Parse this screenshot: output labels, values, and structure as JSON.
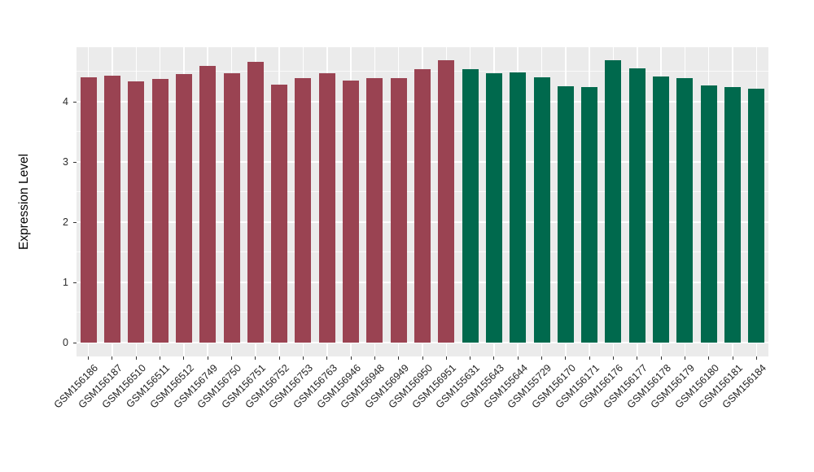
{
  "figure": {
    "background": "#ffffff",
    "panel_background": "#EBEBEB",
    "grid_color": "#ffffff",
    "tick_color": "#333333",
    "axis_text_color": "#1f1f1f"
  },
  "chart_data": {
    "type": "bar",
    "title": "",
    "xlabel": "",
    "ylabel": "Expression Level",
    "ylim": [
      0,
      4.9
    ],
    "yticks": [
      0,
      1,
      2,
      3,
      4
    ],
    "yticks_minor": [
      0.5,
      1.5,
      2.5,
      3.5,
      4.5
    ],
    "grid": "major and minor white gridlines on gray panel (ggplot style)",
    "legend_position": "none",
    "x_label_rotation_deg": 45,
    "categories": [
      "GSM156186",
      "GSM156187",
      "GSM156510",
      "GSM156511",
      "GSM156512",
      "GSM156749",
      "GSM156750",
      "GSM156751",
      "GSM156752",
      "GSM156753",
      "GSM156763",
      "GSM156946",
      "GSM156948",
      "GSM156949",
      "GSM156950",
      "GSM156951",
      "GSM155631",
      "GSM155643",
      "GSM155644",
      "GSM155729",
      "GSM156170",
      "GSM156171",
      "GSM156176",
      "GSM156177",
      "GSM156178",
      "GSM156179",
      "GSM156180",
      "GSM156181",
      "GSM156184"
    ],
    "values": [
      4.4,
      4.43,
      4.33,
      4.37,
      4.45,
      4.59,
      4.46,
      4.66,
      4.28,
      4.39,
      4.47,
      4.34,
      4.39,
      4.39,
      4.54,
      4.68,
      4.53,
      4.46,
      4.48,
      4.4,
      4.25,
      4.23,
      4.68,
      4.55,
      4.41,
      4.39,
      4.26,
      4.23,
      4.21
    ],
    "groups": [
      "maroon",
      "maroon",
      "maroon",
      "maroon",
      "maroon",
      "maroon",
      "maroon",
      "maroon",
      "maroon",
      "maroon",
      "maroon",
      "maroon",
      "maroon",
      "maroon",
      "maroon",
      "maroon",
      "green",
      "green",
      "green",
      "green",
      "green",
      "green",
      "green",
      "green",
      "green",
      "green",
      "green",
      "green",
      "green"
    ],
    "group_colors": {
      "maroon": "#9A4352",
      "green": "#00694D"
    }
  }
}
